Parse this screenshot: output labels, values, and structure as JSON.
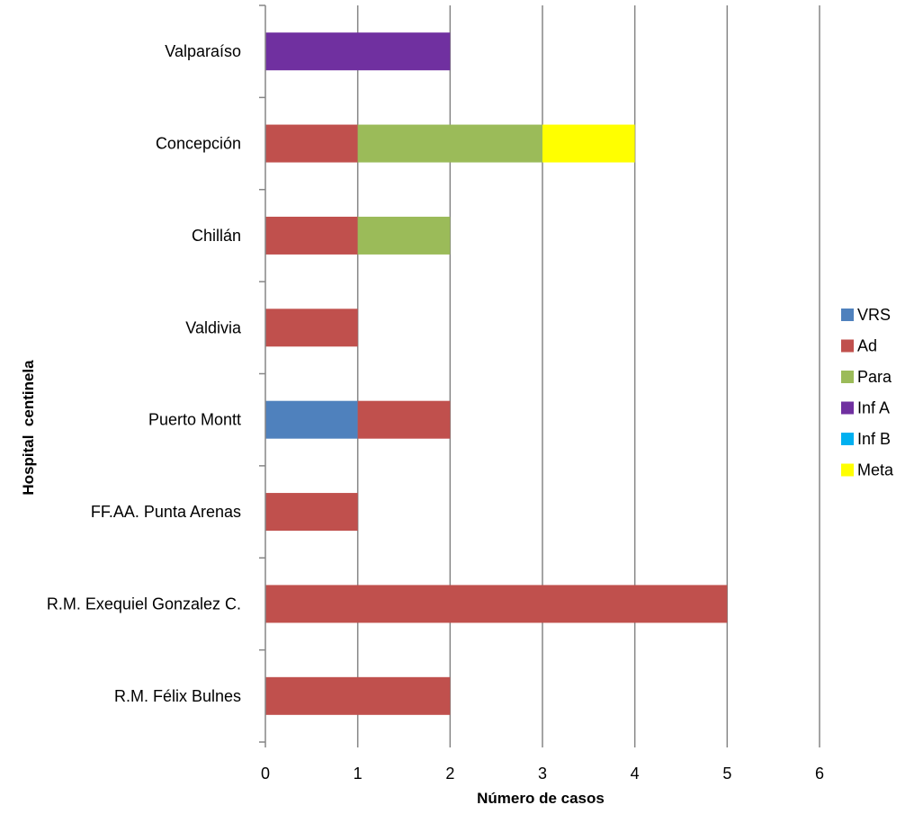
{
  "chart_data": {
    "type": "bar",
    "orientation": "horizontal",
    "stacked": true,
    "categories": [
      "Valparaíso",
      "Concepción",
      "Chillán",
      "Valdivia",
      "Puerto Montt",
      "FF.AA. Punta Arenas",
      "R.M. Exequiel Gonzalez C.",
      "R.M. Félix Bulnes"
    ],
    "series": [
      {
        "name": "VRS",
        "color": "#4f81bd",
        "values": [
          0,
          0,
          0,
          0,
          1,
          0,
          0,
          0
        ]
      },
      {
        "name": "Ad",
        "color": "#c0504d",
        "values": [
          0,
          1,
          1,
          1,
          1,
          1,
          5,
          2
        ]
      },
      {
        "name": "Para",
        "color": "#9bbb59",
        "values": [
          0,
          2,
          1,
          0,
          0,
          0,
          0,
          0
        ]
      },
      {
        "name": "Inf A",
        "color": "#7030a0",
        "values": [
          2,
          0,
          0,
          0,
          0,
          0,
          0,
          0
        ]
      },
      {
        "name": "Inf B",
        "color": "#00b0f0",
        "values": [
          0,
          0,
          0,
          0,
          0,
          0,
          0,
          0
        ]
      },
      {
        "name": "Meta",
        "color": "#ffff00",
        "values": [
          0,
          1,
          0,
          0,
          0,
          0,
          0,
          0
        ]
      }
    ],
    "xlabel": "Número de casos",
    "ylabel": "Hospital  centinela",
    "xlim": [
      0,
      6
    ],
    "xticks": [
      "0",
      "1",
      "2",
      "3",
      "4",
      "5",
      "6"
    ],
    "grid": "vertical",
    "legend_position": "right",
    "gridline_color": "#868686"
  }
}
